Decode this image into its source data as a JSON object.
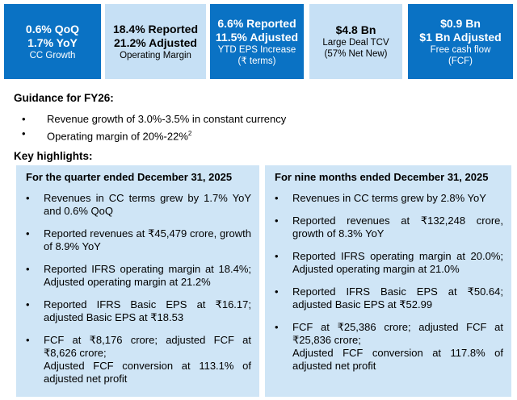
{
  "kpis": [
    {
      "headline": [
        "0.6% QoQ",
        "1.7% YoY"
      ],
      "caption": [
        "CC Growth"
      ]
    },
    {
      "headline": [
        "18.4% Reported",
        "21.2% Adjusted"
      ],
      "caption": [
        "Operating Margin"
      ]
    },
    {
      "headline": [
        "6.6% Reported",
        "11.5% Adjusted"
      ],
      "caption": [
        "YTD EPS Increase",
        "(₹ terms)"
      ]
    },
    {
      "headline": [
        "$4.8 Bn"
      ],
      "caption": [
        "Large Deal TCV",
        "(57% Net New)"
      ]
    },
    {
      "headline": [
        "$0.9 Bn",
        "$1 Bn Adjusted"
      ],
      "caption": [
        "Free cash flow",
        "(FCF)"
      ]
    }
  ],
  "guidance": {
    "title": "Guidance for FY26:",
    "items": [
      {
        "text": "Revenue growth of 3.0%-3.5% in constant currency"
      },
      {
        "text": "Operating margin of 20%-22%",
        "footnote": "2"
      }
    ]
  },
  "highlights": {
    "title": "Key highlights:",
    "panels": [
      {
        "title": "For the quarter ended December 31, 2025",
        "items": [
          [
            "Revenues in CC terms grew by 1.7% YoY and 0.6% QoQ"
          ],
          [
            "Reported revenues at ₹45,479 crore, growth of 8.9% YoY"
          ],
          [
            "Reported IFRS operating margin at 18.4%; Adjusted operating margin at 21.2%"
          ],
          [
            "Reported IFRS Basic EPS at ₹16.17; adjusted Basic EPS at ₹18.53"
          ],
          [
            "FCF at ₹8,176 crore; adjusted FCF at ₹8,626 crore;",
            "Adjusted FCF conversion at 113.1% of adjusted net profit"
          ]
        ]
      },
      {
        "title": "For nine months ended December 31, 2025",
        "items": [
          [
            "Revenues in CC terms grew by 2.8% YoY"
          ],
          [
            "Reported revenues at ₹132,248 crore, growth of 8.3% YoY"
          ],
          [
            "Reported IFRS operating margin at 20.0%; Adjusted operating margin at 21.0%"
          ],
          [
            "Reported IFRS Basic EPS at ₹50.64; adjusted Basic EPS at ₹52.99"
          ],
          [
            "FCF at ₹25,386 crore; adjusted FCF at ₹25,836 crore;",
            "Adjusted FCF conversion at 117.8% of adjusted net profit"
          ]
        ]
      }
    ]
  }
}
